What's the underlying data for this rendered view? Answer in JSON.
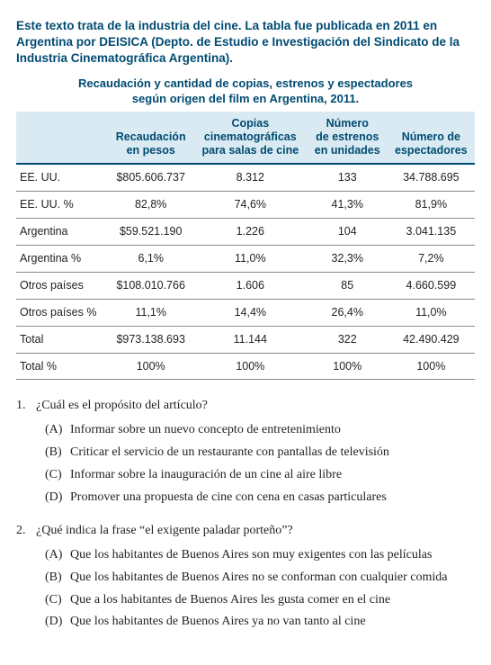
{
  "intro": "Este texto trata de la industria del cine. La tabla fue publicada en 2011 en Argentina por DEISICA (Depto. de Estudio e Investigación del Sindicato de la Industria Cinematográfica Argentina).",
  "caption_line1": "Recaudación y cantidad de copias, estrenos y espectadores",
  "caption_line2": "según origen del film en Argentina, 2011.",
  "headers": {
    "col0": "",
    "col1_l1": "Recaudación",
    "col1_l2": "en pesos",
    "col2_l1": "Copias",
    "col2_l2": "cinematográficas",
    "col2_l3": "para salas de cine",
    "col3_l1": "Número",
    "col3_l2": "de estrenos",
    "col3_l3": "en unidades",
    "col4_l1": "Número de",
    "col4_l2": "espectadores"
  },
  "rows": [
    {
      "c0": "EE. UU.",
      "c1": "$805.606.737",
      "c2": "8.312",
      "c3": "133",
      "c4": "34.788.695"
    },
    {
      "c0": "EE. UU. %",
      "c1": "82,8%",
      "c2": "74,6%",
      "c3": "41,3%",
      "c4": "81,9%"
    },
    {
      "c0": "Argentina",
      "c1": "$59.521.190",
      "c2": "1.226",
      "c3": "104",
      "c4": "3.041.135"
    },
    {
      "c0": "Argentina %",
      "c1": "6,1%",
      "c2": "11,0%",
      "c3": "32,3%",
      "c4": "7,2%"
    },
    {
      "c0": "Otros países",
      "c1": "$108.010.766",
      "c2": "1.606",
      "c3": "85",
      "c4": "4.660.599"
    },
    {
      "c0": "Otros países %",
      "c1": "11,1%",
      "c2": "14,4%",
      "c3": "26,4%",
      "c4": "11,0%"
    },
    {
      "c0": "Total",
      "c1": "$973.138.693",
      "c2": "11.144",
      "c3": "322",
      "c4": "42.490.429"
    },
    {
      "c0": "Total %",
      "c1": "100%",
      "c2": "100%",
      "c3": "100%",
      "c4": "100%"
    }
  ],
  "questions": [
    {
      "num": "1.",
      "stem": "¿Cuál es el propósito del artículo?",
      "opts": [
        {
          "l": "(A)",
          "t": "Informar sobre un nuevo concepto de entretenimiento"
        },
        {
          "l": "(B)",
          "t": "Criticar el servicio de un restaurante con pantallas de televisión"
        },
        {
          "l": "(C)",
          "t": "Informar sobre la inauguración de un cine al aire libre"
        },
        {
          "l": "(D)",
          "t": "Promover una propuesta de cine con cena en casas particulares"
        }
      ]
    },
    {
      "num": "2.",
      "stem": "¿Qué indica la frase “el exigente paladar porteño”?",
      "opts": [
        {
          "l": "(A)",
          "t": "Que los habitantes de Buenos Aires son muy exigentes con las películas"
        },
        {
          "l": "(B)",
          "t": "Que los habitantes de Buenos Aires no se conforman con cualquier comida"
        },
        {
          "l": "(C)",
          "t": "Que a los habitantes de Buenos Aires les gusta comer en el cine"
        },
        {
          "l": "(D)",
          "t": "Que los habitantes de Buenos Aires ya no van tanto al cine"
        }
      ]
    }
  ],
  "style": {
    "accent": "#004b72",
    "header_bg": "#d9eaf2",
    "row_border": "#888888",
    "header_border": "#004b72",
    "body_text": "#222222",
    "background": "#ffffff",
    "body_font": "Georgia",
    "ui_font": "Arial",
    "intro_fontsize": 13.5,
    "caption_fontsize": 13,
    "table_fontsize": 12.5,
    "question_fontsize": 14
  }
}
